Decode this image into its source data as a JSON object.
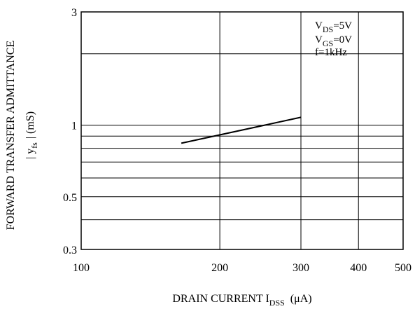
{
  "chart_data": {
    "type": "line",
    "xscale": "log",
    "yscale": "log",
    "xlim": [
      100,
      500
    ],
    "ylim": [
      0.3,
      3
    ],
    "x_ticks": [
      {
        "value": 100,
        "label": "100"
      },
      {
        "value": 200,
        "label": "200"
      },
      {
        "value": 300,
        "label": "300"
      },
      {
        "value": 400,
        "label": "400"
      },
      {
        "value": 500,
        "label": "500"
      }
    ],
    "y_ticks": [
      {
        "value": 0.3,
        "label": "0.3"
      },
      {
        "value": 0.5,
        "label": "0.5"
      },
      {
        "value": 1,
        "label": "1"
      },
      {
        "value": 3,
        "label": "3"
      }
    ],
    "y_gridlines": [
      0.4,
      0.5,
      0.6,
      0.7,
      0.8,
      0.9,
      1,
      2
    ],
    "x_gridlines": [
      200,
      300,
      400
    ],
    "series": [
      {
        "x": [
          165,
          300
        ],
        "y": [
          0.84,
          1.08
        ]
      }
    ],
    "xlabel": {
      "main": "DRAIN CURRENT I",
      "sub": "DSS",
      "unit": "(μA)"
    },
    "ylabel": {
      "line1": "FORWARD TRANSFER ADMITTANCE",
      "line2_pre": "| y",
      "line2_sub": "fs",
      "line2_post": "|  (mS)"
    },
    "conditions": [
      {
        "pre": "V",
        "sub": "DS",
        "post": "=5V"
      },
      {
        "pre": "V",
        "sub": "GS",
        "post": "=0V"
      },
      {
        "pre": "f=1kHz",
        "sub": "",
        "post": ""
      }
    ],
    "grid": true,
    "line_color": "#000000"
  }
}
